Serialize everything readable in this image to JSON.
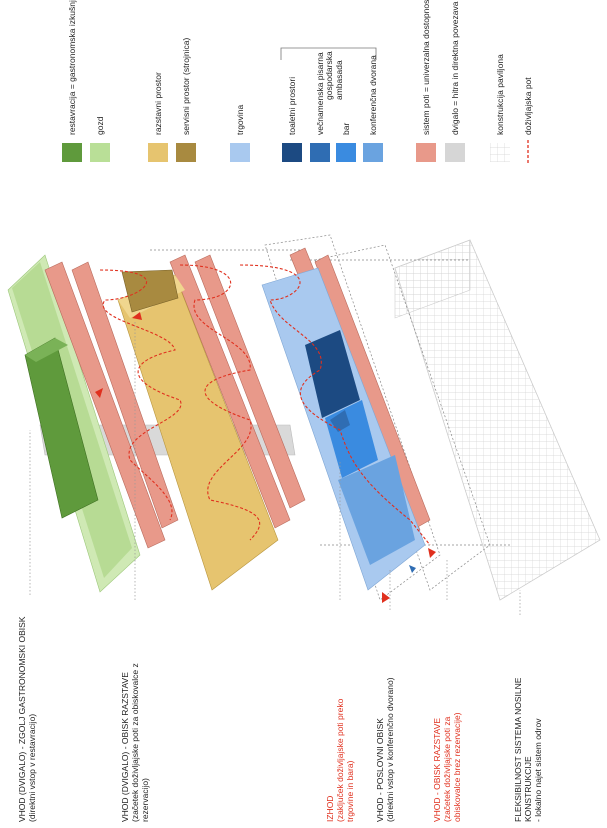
{
  "legend": {
    "items": [
      {
        "label": "restavracija = gastronomska izkušnja"
      },
      {
        "label": "gozd"
      },
      {
        "label": "razstavni prostor"
      },
      {
        "label": "servisni prostor (strojnica)"
      },
      {
        "label": "trgovina"
      },
      {
        "label": "toaletni prostori"
      },
      {
        "label": "večnamenska pisarna"
      },
      {
        "label": "bar"
      },
      {
        "label": "konferenčna dvorana"
      },
      {
        "label": "sistem poti = univerzalna dostopnost"
      },
      {
        "label": "dvigalo = hitra in direktna povezava"
      },
      {
        "label": "konstrukcija paviljona"
      },
      {
        "label": "doživljajska pot"
      }
    ],
    "group_label": [
      "gospodarska",
      "ambasada"
    ]
  },
  "entrances": [
    {
      "title": "VHOD (DVIGALO) - ZGOLJ GASTRONOMSKI OBISK",
      "details": [
        "(direktni vstop v restavracijo)"
      ]
    },
    {
      "title": "VHOD (DVIGALO) - OBISK RAZSTAVE",
      "details": [
        "(začetek doživljajske poti za obiskovalce z",
        "rezervacijo)"
      ]
    },
    {
      "title": "IZHOD",
      "details": [
        "(zaključek doživljajske poti preko",
        "trgovine in bara)"
      ]
    },
    {
      "title": "VHOD - POSLOVNI OBISK",
      "details": [
        "(direktni vstop v konferenčno dvorano)"
      ]
    },
    {
      "title": "VHOD - OBISK RAZSTAVE",
      "details": [
        "(začetek doživljajske poti za",
        "obiskovalce brez rezervacije)"
      ]
    },
    {
      "title": "FLEKSIBILNOST SISTEMA NOSILNE",
      "details": [
        "KONSTRUKCIJE",
        "- lokalno najet sistem odrov"
      ]
    }
  ]
}
